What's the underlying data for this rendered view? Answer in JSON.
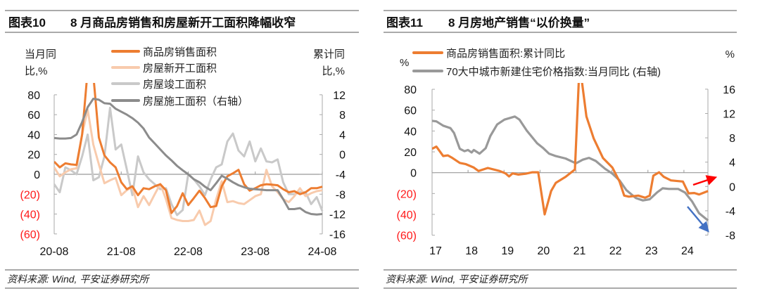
{
  "panels": [
    {
      "title_num": "图表10",
      "title_text": "8 月商品房销售和房屋新开工面积降幅收窄",
      "source": "资料来源: Wind, 平安证券研究所"
    },
    {
      "title_num": "图表11",
      "title_text": "8 月房地产销售“以价换量”",
      "source": "资料来源: Wind, 平安证券研究所"
    }
  ],
  "chart_data": [
    {
      "type": "line",
      "title": "8 月商品房销售和房屋新开工面积降幅收窄",
      "x_range": [
        "2020-08",
        "2024-08"
      ],
      "frequency": "monthly",
      "xticks": [
        "20-08",
        "21-08",
        "22-08",
        "23-08",
        "24-08"
      ],
      "xtick_index": [
        0,
        12,
        24,
        36,
        48
      ],
      "ylabel_left": [
        "当月同",
        "比,%"
      ],
      "ylabel_right": [
        "累计同",
        "比,%"
      ],
      "ylim_left": [
        -60,
        80
      ],
      "ylim_right": [
        -16,
        12
      ],
      "yticks_left": [
        80,
        60,
        40,
        20,
        0,
        -20,
        -40,
        -60
      ],
      "yticks_left_labels": [
        "80",
        "60",
        "40",
        "20",
        "0",
        "(20)",
        "(40)",
        "(60)"
      ],
      "yticks_right": [
        12,
        8,
        4,
        0,
        -4,
        -8,
        -12,
        -16
      ],
      "yticks_right_labels": [
        "12",
        "8",
        "4",
        "0",
        "-4",
        "-8",
        "-12",
        "-16"
      ],
      "legend_position": "top-center",
      "series": [
        {
          "name": "商品房销售面积",
          "axis": "left",
          "color": "#ED7D31",
          "values": [
            12.7,
            7,
            11,
            10,
            9.5,
            40,
            105,
            100,
            37,
            19,
            12,
            7,
            -8,
            -15,
            -12,
            -21,
            -14,
            -15,
            -12,
            -10,
            -16,
            -39,
            -32,
            -19,
            -31,
            -24,
            -16.5,
            -24,
            -33,
            -32,
            -12,
            -2,
            1,
            4.5,
            -10,
            -16.5,
            -14,
            -11,
            -10,
            -10.5,
            -11,
            -15,
            -18,
            -17,
            -20,
            -18,
            -14,
            -14,
            -12.5
          ]
        },
        {
          "name": "房屋新开工面积",
          "axis": "left",
          "color": "#F8CBAD",
          "values": [
            7,
            -2,
            2,
            5,
            6,
            40,
            65,
            30,
            10,
            -9,
            -6,
            -3.6,
            -21,
            -16,
            -12.7,
            -33,
            -22,
            -31,
            -20,
            -9.7,
            -25,
            -44,
            -46,
            -47,
            -47,
            -46,
            -36.5,
            -51,
            -47,
            -25,
            -7,
            -28,
            -27,
            -29,
            -30,
            -26,
            -22,
            -20,
            4.5,
            -12,
            -18,
            -25,
            -28,
            -22,
            -14,
            -22,
            -19,
            -17,
            -16
          ]
        },
        {
          "name": "房屋竣工面积",
          "axis": "left",
          "color": "#C9C9C9",
          "values": [
            -10,
            -18,
            7,
            4,
            0,
            18,
            40,
            -6,
            -3,
            18,
            67,
            25,
            30,
            5,
            -21,
            18,
            2,
            -5,
            -10,
            -15,
            -14,
            -30,
            -41,
            -36,
            0,
            -5,
            -12,
            -21,
            -5,
            7,
            10,
            33,
            41,
            24,
            18,
            33,
            13,
            26,
            13,
            12,
            15,
            -8,
            -20,
            -20,
            -18,
            -18,
            -30,
            -23,
            -37
          ]
        },
        {
          "name": "房屋施工面积（右轴）",
          "axis": "right",
          "color": "#8C8C8C",
          "values": [
            3.3,
            3.2,
            3.2,
            3.3,
            4.0,
            6.5,
            9.5,
            11.2,
            11.0,
            10.3,
            10.2,
            9.2,
            8.6,
            8.0,
            7.3,
            6.4,
            5.2,
            3.4,
            2.2,
            1.0,
            -0.2,
            -1.2,
            -2.3,
            -3.2,
            -4.0,
            -5.0,
            -5.6,
            -6.5,
            -7.2,
            -5.8,
            -4.3,
            -4.9,
            -5.6,
            -6.2,
            -6.6,
            -6.9,
            -7.0,
            -7.1,
            -7.2,
            -7.2,
            -7.2,
            -9.0,
            -11.0,
            -11.0,
            -10.8,
            -11.6,
            -12.0,
            -12.1,
            -12.0
          ]
        }
      ]
    },
    {
      "type": "line",
      "title": "8 月房地产销售“以价换量”",
      "x_range": [
        2017,
        2024.67
      ],
      "xticks": [
        "17",
        "18",
        "19",
        "20",
        "21",
        "22",
        "23",
        "24"
      ],
      "xtick_years": [
        2017,
        2018,
        2019,
        2020,
        2021,
        2022,
        2023,
        2024
      ],
      "ylabel_left": "%",
      "ylabel_right": "%",
      "ylim_left": [
        -60,
        80
      ],
      "ylim_right": [
        -8,
        16
      ],
      "yticks_left": [
        80,
        60,
        40,
        20,
        0,
        -20,
        -40,
        -60
      ],
      "yticks_left_labels": [
        "80",
        "60",
        "40",
        "20",
        "0",
        "(20)",
        "(40)",
        "(60)"
      ],
      "yticks_right": [
        16,
        12,
        8,
        4,
        0,
        -4,
        -8
      ],
      "yticks_right_labels": [
        "16",
        "12",
        "8",
        "4",
        "0",
        "-4",
        "-8"
      ],
      "legend_position": "top-left",
      "annotations": [
        {
          "type": "arrow",
          "color": "#FF0000",
          "direction": "up-right",
          "target": "商品房销售面积:累计同比"
        },
        {
          "type": "arrow",
          "color": "#4472C4",
          "direction": "down-right",
          "target": "70大中城市新建住宅价格指数:当月同比 (右轴)"
        }
      ],
      "series": [
        {
          "name": "商品房销售面积:累计同比",
          "axis": "left",
          "color": "#ED7D31",
          "points": [
            [
              2017.0,
              22.9
            ],
            [
              2017.12,
              25
            ],
            [
              2017.31,
              16
            ],
            [
              2017.44,
              16.6
            ],
            [
              2017.57,
              14
            ],
            [
              2017.77,
              9.4
            ],
            [
              2017.93,
              8.3
            ],
            [
              2018.16,
              4.9
            ],
            [
              2018.29,
              1.6
            ],
            [
              2018.42,
              3.1
            ],
            [
              2018.55,
              4.5
            ],
            [
              2018.88,
              1.6
            ],
            [
              2019.04,
              -0.7
            ],
            [
              2019.14,
              -3.6
            ],
            [
              2019.24,
              -0.7
            ],
            [
              2019.4,
              -1.8
            ],
            [
              2019.6,
              -1.0
            ],
            [
              2019.79,
              0.4
            ],
            [
              2019.95,
              0.4
            ],
            [
              2020.13,
              -40
            ],
            [
              2020.31,
              -17.5
            ],
            [
              2020.44,
              -9.7
            ],
            [
              2020.71,
              -4
            ],
            [
              2020.97,
              3.1
            ],
            [
              2021.1,
              104.9
            ],
            [
              2021.29,
              54
            ],
            [
              2021.49,
              33
            ],
            [
              2021.75,
              14
            ],
            [
              2022.01,
              4.9
            ],
            [
              2022.21,
              -8.5
            ],
            [
              2022.34,
              -22
            ],
            [
              2022.47,
              -23
            ],
            [
              2022.73,
              -22
            ],
            [
              2022.92,
              -24
            ],
            [
              2023.05,
              -22
            ],
            [
              2023.15,
              -2.9
            ],
            [
              2023.31,
              0.4
            ],
            [
              2023.44,
              -4
            ],
            [
              2023.64,
              -7.4
            ],
            [
              2023.97,
              -8.5
            ],
            [
              2024.13,
              -19.8
            ],
            [
              2024.29,
              -19.5
            ],
            [
              2024.42,
              -20.9
            ],
            [
              2024.67,
              -17.5
            ]
          ]
        },
        {
          "name": "70大中城市新建住宅价格指数:当月同比 (右轴)",
          "axis": "right",
          "color": "#999999",
          "points": [
            [
              2017.0,
              10.8
            ],
            [
              2017.12,
              10.7
            ],
            [
              2017.31,
              10
            ],
            [
              2017.51,
              9.6
            ],
            [
              2017.61,
              8.8
            ],
            [
              2017.77,
              6.2
            ],
            [
              2017.9,
              5.8
            ],
            [
              2018.0,
              6
            ],
            [
              2018.1,
              5.6
            ],
            [
              2018.16,
              6.0
            ],
            [
              2018.32,
              5.4
            ],
            [
              2018.49,
              6.3
            ],
            [
              2018.62,
              8.3
            ],
            [
              2018.81,
              10.2
            ],
            [
              2019.01,
              11
            ],
            [
              2019.3,
              11.5
            ],
            [
              2019.43,
              11
            ],
            [
              2019.63,
              9.2
            ],
            [
              2019.92,
              7.1
            ],
            [
              2020.09,
              6.3
            ],
            [
              2020.25,
              5.4
            ],
            [
              2020.44,
              5
            ],
            [
              2020.71,
              4.6
            ],
            [
              2021.0,
              3.8
            ],
            [
              2021.19,
              4.4
            ],
            [
              2021.36,
              4.7
            ],
            [
              2021.55,
              4.2
            ],
            [
              2021.81,
              2.9
            ],
            [
              2022.01,
              2.1
            ],
            [
              2022.21,
              1
            ],
            [
              2022.4,
              -0.6
            ],
            [
              2022.66,
              -1.9
            ],
            [
              2022.86,
              -2.3
            ],
            [
              2023.05,
              -2.1
            ],
            [
              2023.25,
              -1
            ],
            [
              2023.41,
              -0.3
            ],
            [
              2023.58,
              -0.4
            ],
            [
              2023.84,
              -0.4
            ],
            [
              2024.03,
              -1
            ],
            [
              2024.23,
              -2.5
            ],
            [
              2024.42,
              -4.4
            ],
            [
              2024.67,
              -5.6
            ]
          ]
        }
      ]
    }
  ]
}
